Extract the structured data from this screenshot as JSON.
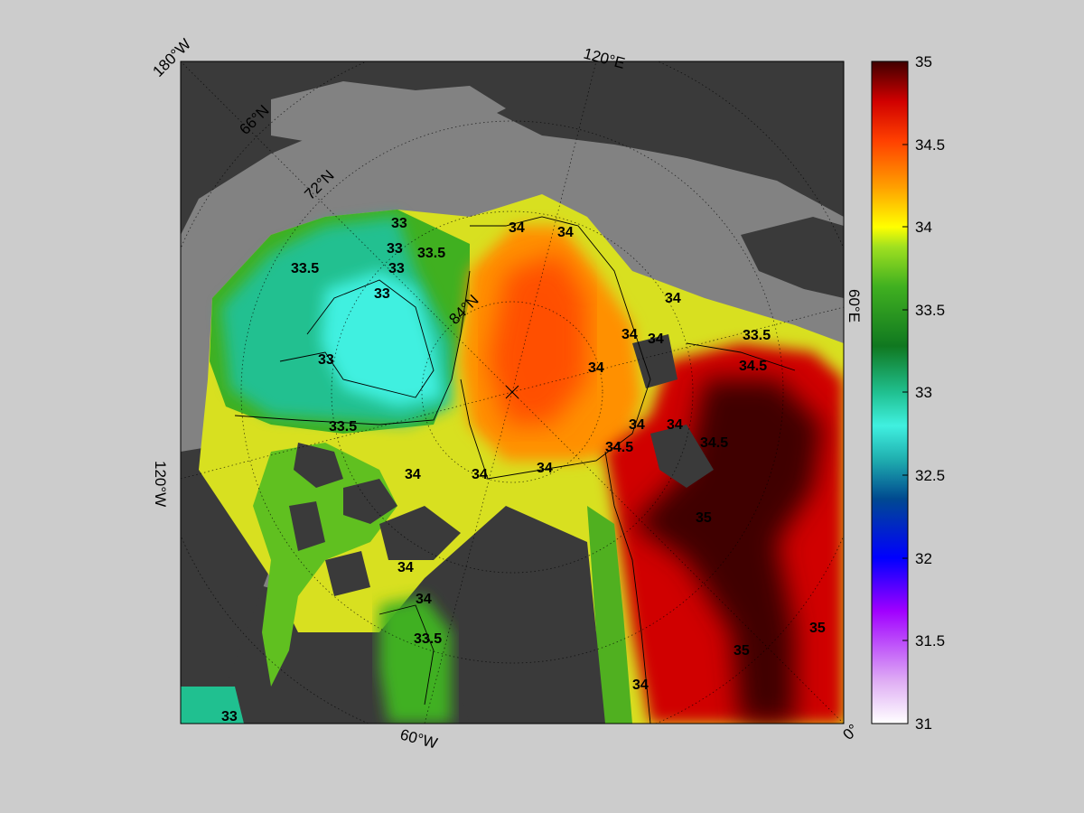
{
  "map": {
    "longitude_labels": [
      "180°W",
      "120°E",
      "60°E",
      "0°",
      "60°W",
      "120°W"
    ],
    "latitude_labels": [
      "66°N",
      "72°N",
      "84°N"
    ],
    "contour_labels": [
      "33",
      "33",
      "33",
      "33",
      "33",
      "33",
      "33.5",
      "33.5",
      "33.5",
      "33.5",
      "33.5",
      "34",
      "34",
      "34",
      "34",
      "34",
      "34",
      "34",
      "34",
      "34",
      "34",
      "34",
      "34",
      "34",
      "34",
      "34.5",
      "34.5",
      "34.5",
      "35",
      "35",
      "35"
    ]
  },
  "colorbar": {
    "min": 31,
    "max": 35,
    "ticks": [
      "35",
      "34.5",
      "34",
      "33.5",
      "33",
      "32.5",
      "32",
      "31.5",
      "31"
    ],
    "colors": [
      "#ffffff",
      "#e0b0f4",
      "#a000ff",
      "#0000ff",
      "#004a90",
      "#20b0b0",
      "#40f0e0",
      "#20c090",
      "#107820",
      "#40b020",
      "#a0e020",
      "#ffff00",
      "#ffa000",
      "#ff4000",
      "#d00000",
      "#400000"
    ]
  },
  "colors": {
    "background": "#cccccc",
    "land": "#3a3a3a",
    "shelf": "#828282"
  }
}
